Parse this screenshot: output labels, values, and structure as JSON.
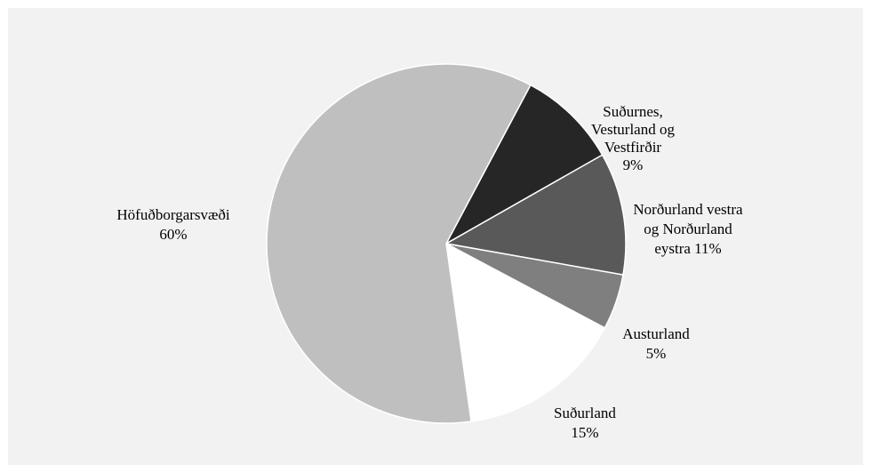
{
  "chart_data": {
    "type": "pie",
    "title": "",
    "start_angle_deg": 28,
    "direction": "clockwise",
    "slices": [
      {
        "lines": [
          "Suðurnes,",
          "Vesturland og",
          "Vestfirðir",
          "9%"
        ],
        "value": 9,
        "color": "#262626"
      },
      {
        "lines": [
          "Norðurland vestra",
          "og Norðurland",
          "eystra 11%"
        ],
        "value": 11,
        "color": "#595959"
      },
      {
        "lines": [
          "Austurland",
          "5%"
        ],
        "value": 5,
        "color": "#7f7f7f"
      },
      {
        "lines": [
          "Suðurland",
          "15%"
        ],
        "value": 15,
        "color": "#ffffff"
      },
      {
        "lines": [
          "Höfuðborgarsvæði",
          "60%"
        ],
        "value": 60,
        "color": "#bfbfbf"
      }
    ]
  }
}
